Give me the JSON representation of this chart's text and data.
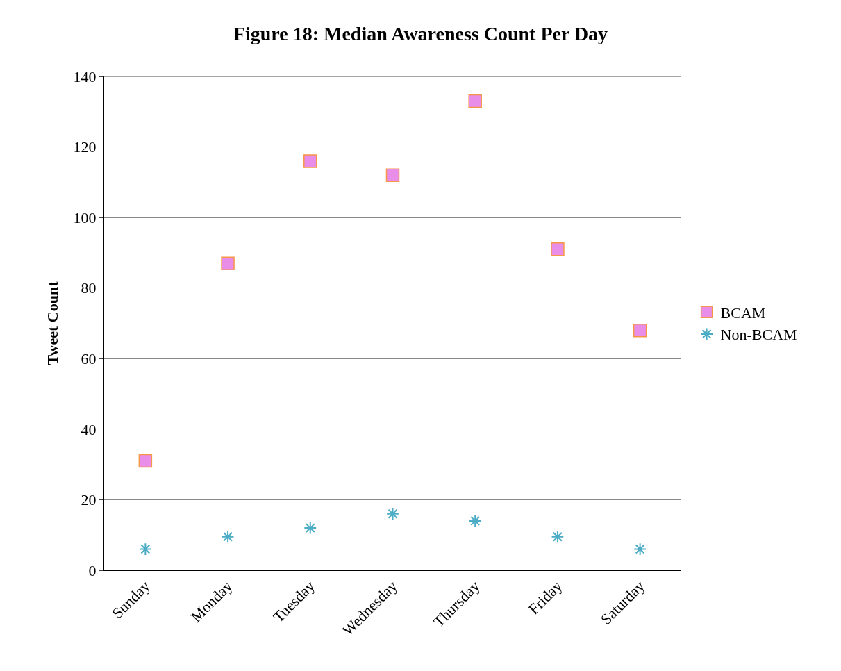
{
  "chart_data": {
    "type": "scatter",
    "title": "Figure 18: Median Awareness Count Per Day",
    "ylabel": "Tweet Count",
    "categories": [
      "Sunday",
      "Monday",
      "Tuesday",
      "Wednesday",
      "Thursday",
      "Friday",
      "Saturday"
    ],
    "series": [
      {
        "name": "BCAM",
        "color": "#e88ee8",
        "marker": "square",
        "values": [
          31,
          87,
          116,
          112,
          133,
          91,
          68
        ]
      },
      {
        "name": "Non-BCAM",
        "color": "#4bacc6",
        "marker": "cross",
        "values": [
          6,
          9.5,
          12,
          16,
          14,
          9.5,
          6
        ]
      }
    ],
    "ylim": [
      0,
      140
    ],
    "yticks": [
      0,
      20,
      40,
      60,
      80,
      100,
      120,
      140
    ],
    "grid": "y",
    "legend": "right"
  }
}
